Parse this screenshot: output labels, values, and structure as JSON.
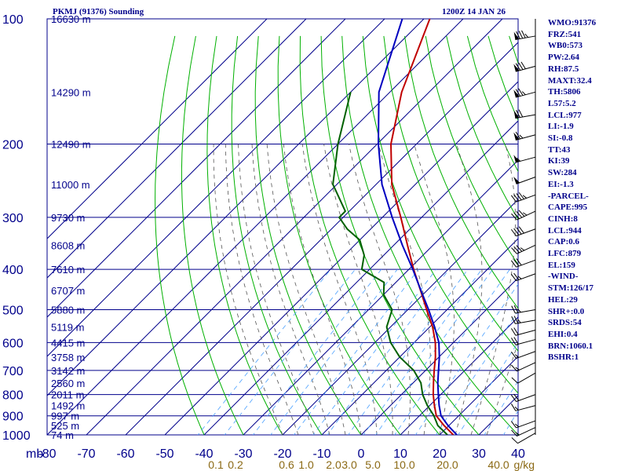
{
  "header": {
    "station": "PKMJ (91376) Sounding",
    "time": "1200Z 14 JAN 26"
  },
  "colors": {
    "isobar": "#00008b",
    "isotherm": "#00008b",
    "dry_adiabat": "#00b000",
    "moist_adiabat": "#555555",
    "mixing_ratio": "#4aa0ff",
    "temperature": "#c00000",
    "dewpoint": "#006000",
    "parcel": "#0000c0",
    "wind": "#000000",
    "text": "#00008b",
    "mixing_label": "#8b6914"
  },
  "chart_data": {
    "type": "line",
    "title": "PKMJ (91376) Sounding",
    "subtitle": "1200Z 14 JAN 26",
    "xlabel": "",
    "ylabel": "mb",
    "x_range": [
      -80,
      40
    ],
    "y_range_mb": [
      1000,
      100
    ],
    "pressure_ticks": [
      100,
      200,
      300,
      400,
      500,
      600,
      700,
      800,
      900,
      1000
    ],
    "temperature_ticks": [
      -80,
      -70,
      -60,
      -50,
      -40,
      -30,
      -20,
      -10,
      0,
      10,
      20,
      30,
      40
    ],
    "height_labels": [
      {
        "p": 100,
        "h": "16630 m"
      },
      {
        "p": 150,
        "h": "14290 m"
      },
      {
        "p": 200,
        "h": "12490 m"
      },
      {
        "p": 250,
        "h": "11000 m"
      },
      {
        "p": 300,
        "h": "9730 m"
      },
      {
        "p": 350,
        "h": "8608 m"
      },
      {
        "p": 400,
        "h": "7610 m"
      },
      {
        "p": 450,
        "h": "6707 m"
      },
      {
        "p": 500,
        "h": "5880 m"
      },
      {
        "p": 550,
        "h": "5119 m"
      },
      {
        "p": 600,
        "h": "4415 m"
      },
      {
        "p": 650,
        "h": "3758 m"
      },
      {
        "p": 700,
        "h": "3142 m"
      },
      {
        "p": 750,
        "h": "2560 m"
      },
      {
        "p": 800,
        "h": "2011 m"
      },
      {
        "p": 850,
        "h": "1492 m"
      },
      {
        "p": 900,
        "h": "997 m"
      },
      {
        "p": 950,
        "h": "525 m"
      },
      {
        "p": 1000,
        "h": "74 m"
      }
    ],
    "mixing_ratio_labels": [
      {
        "t": -37,
        "label": "0.1"
      },
      {
        "t": -32,
        "label": "0.2"
      },
      {
        "t": -19,
        "label": "0.6"
      },
      {
        "t": -14,
        "label": "1.0"
      },
      {
        "t": -7,
        "label": "2.0"
      },
      {
        "t": -3,
        "label": "3.0"
      },
      {
        "t": 3,
        "label": "5.0"
      },
      {
        "t": 11,
        "label": "10.0"
      },
      {
        "t": 22,
        "label": "20.0"
      },
      {
        "t": 35,
        "label": "40.0"
      }
    ],
    "mixing_unit": "g/kg",
    "series": [
      {
        "key": "temperature",
        "points": [
          [
            100,
            -88.5
          ],
          [
            150,
            -77
          ],
          [
            200,
            -66.5
          ],
          [
            250,
            -56
          ],
          [
            300,
            -45.3
          ],
          [
            350,
            -36.5
          ],
          [
            400,
            -28.8
          ],
          [
            450,
            -21.6
          ],
          [
            500,
            -15.2
          ],
          [
            550,
            -9.3
          ],
          [
            600,
            -4.6
          ],
          [
            650,
            -0.9
          ],
          [
            700,
            2.2
          ],
          [
            750,
            5.2
          ],
          [
            800,
            8.1
          ],
          [
            850,
            11.2
          ],
          [
            900,
            14.3
          ],
          [
            950,
            18.8
          ],
          [
            1000,
            23.5
          ]
        ]
      },
      {
        "key": "dewpoint",
        "points": [
          [
            150,
            -90
          ],
          [
            200,
            -80
          ],
          [
            250,
            -71
          ],
          [
            290,
            -61
          ],
          [
            300,
            -61
          ],
          [
            320,
            -56
          ],
          [
            340,
            -50
          ],
          [
            370,
            -45
          ],
          [
            400,
            -42
          ],
          [
            430,
            -33
          ],
          [
            460,
            -30
          ],
          [
            500,
            -24
          ],
          [
            550,
            -21
          ],
          [
            600,
            -16
          ],
          [
            650,
            -10
          ],
          [
            700,
            -3
          ],
          [
            750,
            2
          ],
          [
            800,
            5.4
          ],
          [
            850,
            9.4
          ],
          [
            900,
            13.7
          ],
          [
            950,
            17.2
          ],
          [
            1000,
            22
          ]
        ]
      },
      {
        "key": "parcel",
        "points": [
          [
            100,
            -95.5
          ],
          [
            150,
            -82.8
          ],
          [
            200,
            -69.7
          ],
          [
            250,
            -58.5
          ],
          [
            300,
            -47.5
          ],
          [
            350,
            -37.8
          ],
          [
            400,
            -29
          ],
          [
            450,
            -21.5
          ],
          [
            500,
            -14.7
          ],
          [
            550,
            -8.8
          ],
          [
            600,
            -3.7
          ],
          [
            650,
            0.1
          ],
          [
            700,
            3.3
          ],
          [
            750,
            6.3
          ],
          [
            800,
            9.4
          ],
          [
            850,
            12.4
          ],
          [
            900,
            15.5
          ],
          [
            950,
            19.8
          ],
          [
            1000,
            24.4
          ]
        ]
      }
    ],
    "wind_barbs": [
      {
        "p": 110,
        "dir": 260,
        "kt": 85
      },
      {
        "p": 130,
        "dir": 255,
        "kt": 80
      },
      {
        "p": 150,
        "dir": 255,
        "kt": 75
      },
      {
        "p": 170,
        "dir": 260,
        "kt": 70
      },
      {
        "p": 190,
        "dir": 255,
        "kt": 65
      },
      {
        "p": 215,
        "dir": 255,
        "kt": 55
      },
      {
        "p": 240,
        "dir": 250,
        "kt": 50
      },
      {
        "p": 265,
        "dir": 250,
        "kt": 45
      },
      {
        "p": 290,
        "dir": 245,
        "kt": 45
      },
      {
        "p": 320,
        "dir": 250,
        "kt": 40
      },
      {
        "p": 350,
        "dir": 245,
        "kt": 35
      },
      {
        "p": 380,
        "dir": 250,
        "kt": 30
      },
      {
        "p": 410,
        "dir": 250,
        "kt": 25
      },
      {
        "p": 500,
        "dir": 260,
        "kt": 25
      },
      {
        "p": 530,
        "dir": 260,
        "kt": 25
      },
      {
        "p": 560,
        "dir": 255,
        "kt": 20
      },
      {
        "p": 590,
        "dir": 255,
        "kt": 20
      },
      {
        "p": 630,
        "dir": 250,
        "kt": 15
      },
      {
        "p": 670,
        "dir": 245,
        "kt": 15
      },
      {
        "p": 710,
        "dir": 240,
        "kt": 10
      },
      {
        "p": 800,
        "dir": 250,
        "kt": 20
      },
      {
        "p": 850,
        "dir": 255,
        "kt": 15
      },
      {
        "p": 925,
        "dir": 250,
        "kt": 15
      },
      {
        "p": 960,
        "dir": 245,
        "kt": 15
      },
      {
        "p": 990,
        "dir": 240,
        "kt": 10
      }
    ]
  },
  "indices": [
    "WMO:91376",
    "FRZ:541",
    "WB0:573",
    "PW:2.64",
    "RH:87.5",
    "MAXT:32.4",
    "TH:5806",
    "L57:5.2",
    "LCL:977",
    "LI:-1.9",
    "SI:-0.8",
    "TT:43",
    "KI:39",
    "SW:284",
    "EI:-1.3",
    "-PARCEL-",
    "CAPE:995",
    "CINH:8",
    "LCL:944",
    "CAP:0.6",
    "LFC:879",
    "EL:159",
    "-WIND-",
    "STM:126/17",
    "HEL:29",
    "SHR+:0.0",
    "SRDS:54",
    "EHI:0.4",
    "BRN:1060.1",
    "BSHR:1"
  ]
}
